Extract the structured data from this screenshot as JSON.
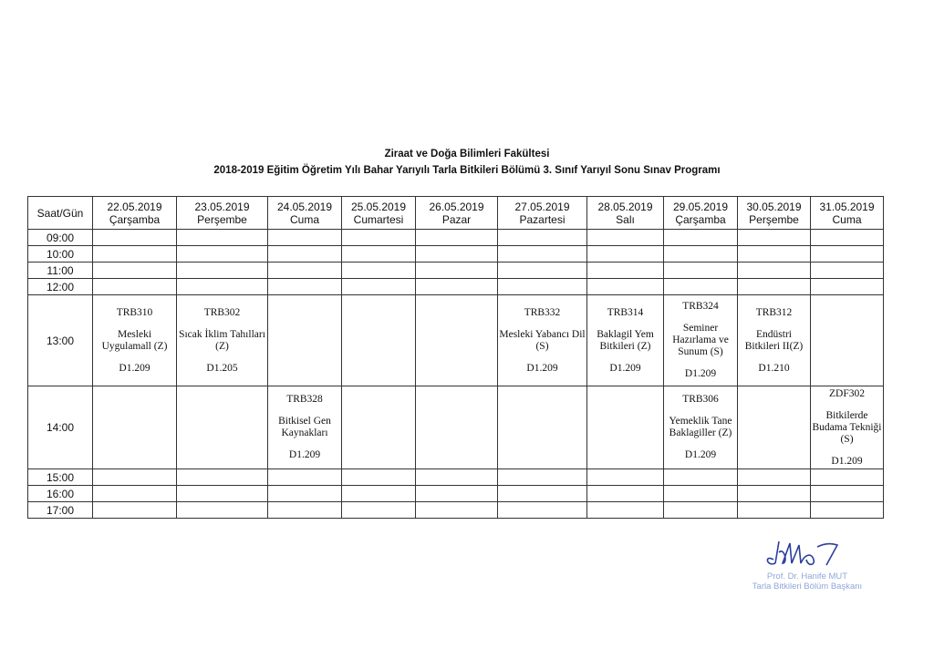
{
  "header": {
    "faculty": "Ziraat ve Doğa Bilimleri Fakültesi",
    "program_title": "2018-2019 Eğitim Öğretim Yılı Bahar Yarıyılı Tarla Bitkileri Bölümü 3. Sınıf Yarıyıl Sonu Sınav Programı"
  },
  "table": {
    "corner": "Saat/Gün",
    "days": [
      {
        "date": "22.05.2019",
        "day": "Çarşamba"
      },
      {
        "date": "23.05.2019",
        "day": "Perşembe"
      },
      {
        "date": "24.05.2019",
        "day": "Cuma"
      },
      {
        "date": "25.05.2019",
        "day": "Cumartesi"
      },
      {
        "date": "26.05.2019",
        "day": "Pazar"
      },
      {
        "date": "27.05.2019",
        "day": "Pazartesi"
      },
      {
        "date": "28.05.2019",
        "day": "Salı"
      },
      {
        "date": "29.05.2019",
        "day": "Çarşamba"
      },
      {
        "date": "30.05.2019",
        "day": "Perşembe"
      },
      {
        "date": "31.05.2019",
        "day": "Cuma"
      }
    ],
    "times": [
      "09:00",
      "10:00",
      "11:00",
      "12:00",
      "13:00",
      "14:00",
      "15:00",
      "16:00",
      "17:00"
    ],
    "exams": {
      "13:00": [
        {
          "code": "TRB310",
          "name": "Mesleki Uygulamall (Z)",
          "room": "D1.209"
        },
        {
          "code": "TRB302",
          "name": "Sıcak İklim Tahılları (Z)",
          "room": "D1.205"
        },
        null,
        null,
        null,
        {
          "code": "TRB332",
          "name": "Mesleki Yabancı Dil (S)",
          "room": "D1.209"
        },
        {
          "code": "TRB314",
          "name": "Baklagil Yem Bitkileri (Z)",
          "room": "D1.209"
        },
        {
          "code": "TRB324",
          "name": "Seminer Hazırlama ve Sunum (S)",
          "room": "D1.209"
        },
        {
          "code": "TRB312",
          "name": "Endüstri Bitkileri II(Z)",
          "room": "D1.210"
        },
        null
      ],
      "14:00": [
        null,
        null,
        {
          "code": "TRB328",
          "name": "Bitkisel Gen Kaynakları",
          "room": "D1.209"
        },
        null,
        null,
        null,
        null,
        {
          "code": "TRB306",
          "name": "Yemeklik Tane Baklagiller (Z)",
          "room": "D1.209"
        },
        null,
        {
          "code": "ZDF302",
          "name": "Bitkilerde Budama Tekniği (S)",
          "room": "D1.209"
        }
      ]
    }
  },
  "signature": {
    "name": "Prof. Dr. Hanife MUT",
    "role": "Tarla Bitkileri Bölüm Başkanı",
    "ink_color": "#2a3f9e",
    "stamp_text_color": "#8fa7d8"
  }
}
